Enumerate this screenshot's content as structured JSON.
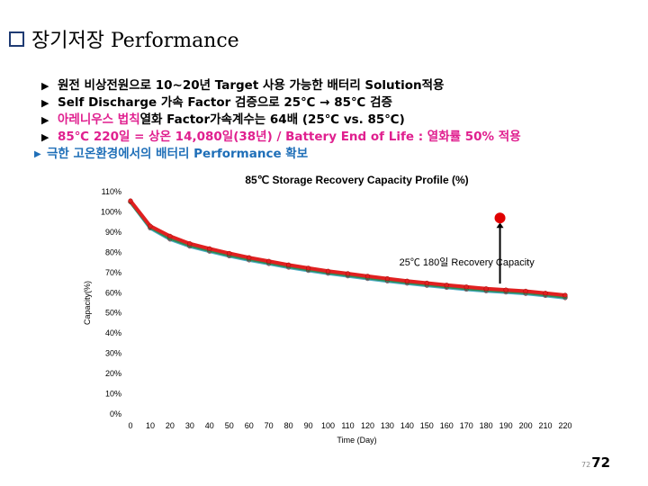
{
  "heading": {
    "text": "장기저장 Performance"
  },
  "bullets": [
    {
      "marker": "▶",
      "text": "원전 비상전원으로 10~20년 Target 사용 가능한 배터리 Solution적용",
      "color": "#000000"
    },
    {
      "marker": "▶",
      "text": "Self Discharge 가속 Factor 검증으로 25℃ → 85℃ 검증",
      "color": "#000000"
    },
    {
      "marker": "▶",
      "pre": "아레니우스 법칙",
      "text": " 열화 Factor가속계수는 64배 (25℃ vs. 85℃)",
      "pre_color": "#e0208f"
    },
    {
      "marker": "▶",
      "text": "85℃ 220일 = 상온 14,080일(38년) / Battery End of Life : 열화률 50% 적용",
      "color": "#e0208f"
    }
  ],
  "last_line": {
    "marker": "▶",
    "text": "극한 고온환경에서의 배터리 Performance 확보",
    "color": "#1f6fb8"
  },
  "page_number": {
    "small": "72",
    "big": "72"
  },
  "chart_data": {
    "type": "line",
    "title": "85℃ Storage Recovery  Capacity  Profile  (%)",
    "xlabel": "Time (Day)",
    "ylabel": "Capacity(%)",
    "xlim": [
      0,
      220
    ],
    "ylim": [
      0,
      110
    ],
    "xticks": [
      "0",
      "10",
      "20",
      "30",
      "40",
      "50",
      "60",
      "70",
      "80",
      "90",
      "100",
      "110",
      "120",
      "130",
      "140",
      "150",
      "160",
      "170",
      "180",
      "190",
      "200",
      "210",
      "220"
    ],
    "yticks": [
      "0%",
      "10%",
      "20%",
      "30%",
      "40%",
      "50%",
      "60%",
      "70%",
      "80%",
      "90%",
      "100%",
      "110%"
    ],
    "grid": false,
    "series": [
      {
        "color": "#4bacc6",
        "x": [
          0,
          10,
          20,
          30,
          40,
          50,
          60,
          70,
          80,
          90,
          100,
          110,
          120,
          130,
          140,
          150,
          160,
          170,
          180,
          190,
          200,
          210,
          220
        ],
        "y": [
          105,
          92,
          86.5,
          83,
          80.5,
          78.2,
          76.2,
          74.4,
          72.6,
          71.0,
          69.6,
          68.3,
          67.0,
          65.8,
          64.7,
          63.6,
          62.6,
          61.7,
          60.9,
          60.3,
          59.6,
          58.6,
          57.5
        ]
      },
      {
        "color": "#2e8b57",
        "x": [
          0,
          10,
          20,
          30,
          40,
          50,
          60,
          70,
          80,
          90,
          100,
          110,
          120,
          130,
          140,
          150,
          160,
          170,
          180,
          190,
          200,
          210,
          220
        ],
        "y": [
          105,
          92.5,
          87,
          83.5,
          81,
          78.7,
          76.7,
          74.9,
          73.1,
          71.5,
          70.1,
          68.8,
          67.5,
          66.3,
          65.2,
          64.1,
          63.1,
          62.2,
          61.4,
          60.8,
          60.1,
          59.1,
          58.0
        ]
      },
      {
        "color": "#e02020",
        "x": [
          0,
          10,
          20,
          30,
          40,
          50,
          60,
          70,
          80,
          90,
          100,
          110,
          120,
          130,
          140,
          150,
          160,
          170,
          180,
          190,
          200,
          210,
          220
        ],
        "y": [
          105.5,
          93,
          88,
          84.3,
          81.8,
          79.5,
          77.4,
          75.6,
          73.8,
          72.2,
          70.7,
          69.5,
          68.2,
          67.0,
          65.8,
          64.8,
          63.8,
          62.9,
          62.0,
          61.4,
          60.8,
          59.8,
          58.8
        ]
      }
    ],
    "recovery_point": {
      "x": 187,
      "y": 97
    },
    "annotation": "25℃  180일  Recovery Capacity"
  }
}
